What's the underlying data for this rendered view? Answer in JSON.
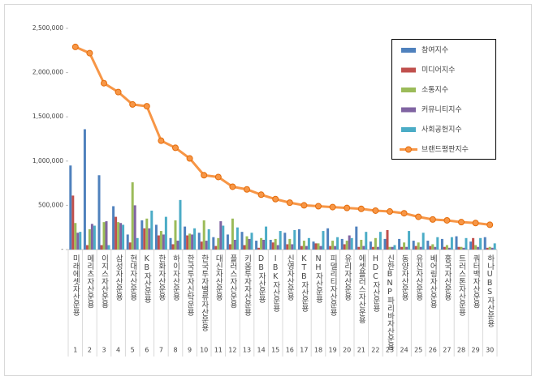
{
  "chart_data": {
    "type": "bar-line",
    "categories": [
      "미래에셋자산운용",
      "메리츠자산운용",
      "이지스자산운용",
      "삼성자산운용",
      "현대자산운용",
      "KB자산운용",
      "한화자산운용",
      "하이자산운용",
      "한국투자신탁운용",
      "한국투자밸류자산운용",
      "대신자산운용",
      "플러스자산운용",
      "키움투자자산운용",
      "DB자산운용",
      "IBK자산운용",
      "신영자산운용",
      "KTB자산운용",
      "NH자산운용",
      "피델리티자산운용",
      "유리자산운용",
      "에셋플러스자산운용",
      "HDC자산운용",
      "신한BNP파리바자산운용",
      "동양자산운용",
      "유진자산운용",
      "베어링자산운용",
      "흥국자산운용",
      "트러스톤자산운용",
      "쿼터백자산운용",
      "하나UBS자산운용"
    ],
    "category_numbers": [
      1,
      2,
      3,
      4,
      5,
      6,
      7,
      8,
      9,
      10,
      11,
      12,
      13,
      14,
      15,
      16,
      17,
      18,
      19,
      20,
      21,
      22,
      23,
      24,
      25,
      26,
      27,
      28,
      29,
      30
    ],
    "series": [
      {
        "name": "참여지수",
        "color": "#4f81bd",
        "kind": "bar",
        "values": [
          950000,
          1360000,
          840000,
          490000,
          170000,
          330000,
          280000,
          130000,
          260000,
          190000,
          140000,
          170000,
          200000,
          100000,
          110000,
          190000,
          230000,
          90000,
          240000,
          120000,
          260000,
          90000,
          120000,
          120000,
          100000,
          100000,
          120000,
          150000,
          90000,
          140000
        ]
      },
      {
        "name": "미디어지수",
        "color": "#c0504d",
        "kind": "bar",
        "values": [
          610000,
          50000,
          50000,
          370000,
          80000,
          240000,
          160000,
          60000,
          160000,
          90000,
          40000,
          60000,
          50000,
          20000,
          80000,
          60000,
          40000,
          70000,
          40000,
          60000,
          30000,
          30000,
          220000,
          30000,
          40000,
          40000,
          30000,
          30000,
          130000,
          20000
        ]
      },
      {
        "name": "소통지수",
        "color": "#9bbb59",
        "kind": "bar",
        "values": [
          300000,
          230000,
          310000,
          310000,
          760000,
          350000,
          210000,
          330000,
          180000,
          330000,
          130000,
          350000,
          150000,
          130000,
          120000,
          120000,
          100000,
          70000,
          100000,
          100000,
          110000,
          130000,
          30000,
          80000,
          80000,
          60000,
          50000,
          30000,
          50000,
          30000
        ]
      },
      {
        "name": "커뮤니티지수",
        "color": "#8064a2",
        "kind": "bar",
        "values": [
          190000,
          290000,
          320000,
          300000,
          500000,
          240000,
          170000,
          100000,
          170000,
          100000,
          320000,
          110000,
          120000,
          110000,
          50000,
          60000,
          40000,
          40000,
          40000,
          160000,
          40000,
          30000,
          30000,
          30000,
          30000,
          30000,
          20000,
          20000,
          30000,
          20000
        ]
      },
      {
        "name": "사회공헌지수",
        "color": "#4bacc6",
        "kind": "bar",
        "values": [
          200000,
          270000,
          50000,
          280000,
          130000,
          440000,
          370000,
          560000,
          240000,
          230000,
          270000,
          250000,
          190000,
          260000,
          210000,
          220000,
          130000,
          210000,
          140000,
          130000,
          200000,
          200000,
          50000,
          210000,
          190000,
          140000,
          140000,
          130000,
          130000,
          70000
        ]
      },
      {
        "name": "브랜드평판지수",
        "color": "#f79646",
        "kind": "line",
        "values": [
          2290000,
          2220000,
          1880000,
          1780000,
          1640000,
          1620000,
          1230000,
          1150000,
          1030000,
          840000,
          820000,
          710000,
          680000,
          620000,
          570000,
          530000,
          500000,
          490000,
          480000,
          470000,
          460000,
          440000,
          430000,
          410000,
          370000,
          340000,
          330000,
          310000,
          300000,
          280000
        ]
      }
    ],
    "ylim": [
      0,
      2500000
    ],
    "yticks": [
      {
        "value": 0,
        "label": "-"
      },
      {
        "value": 500000,
        "label": "500,000"
      },
      {
        "value": 1000000,
        "label": "1,000,000"
      },
      {
        "value": 1500000,
        "label": "1,500,000"
      },
      {
        "value": 2000000,
        "label": "2,000,000"
      },
      {
        "value": 2500000,
        "label": "2,500,000"
      }
    ],
    "legend": "top-right"
  }
}
